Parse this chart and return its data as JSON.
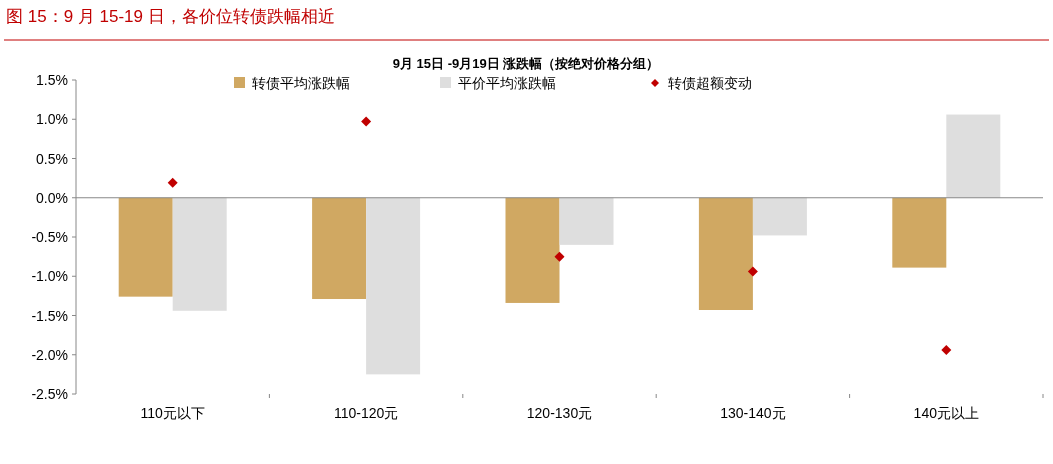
{
  "chart_data": {
    "type": "bar",
    "title": "图 15：9 月 15-19 日，各价位转债跌幅相近",
    "subtitle": "9月 15日 -9月19日 涨跌幅（按绝对价格分组）",
    "categories": [
      "110元以下",
      "110-120元",
      "120-130元",
      "130-140元",
      "140元以上"
    ],
    "series": [
      {
        "name": "转债平均涨跌幅",
        "color": "#d0a862",
        "values": [
          -1.26,
          -1.29,
          -1.34,
          -1.43,
          -0.89
        ]
      },
      {
        "name": "平价平均涨跌幅",
        "color": "#dedede",
        "values": [
          -1.44,
          -2.25,
          -0.6,
          -0.48,
          1.06
        ]
      },
      {
        "name": "转债超额变动",
        "color": "#c00000",
        "type": "scatter",
        "marker": "diamond",
        "x": [
          "110元以下",
          "110-120元",
          "120-130元",
          "130-140元",
          "140元以上"
        ],
        "values": [
          0.19,
          0.97,
          -0.75,
          -0.94,
          -1.94
        ]
      }
    ],
    "ylim": [
      -2.5,
      1.5
    ],
    "yticks": [
      {
        "value": 1.5,
        "label": "1.5%"
      },
      {
        "value": 1.0,
        "label": "1.0%"
      },
      {
        "value": 0.5,
        "label": "0.5%"
      },
      {
        "value": 0.0,
        "label": "0.0%"
      },
      {
        "value": -0.5,
        "label": "-0.5%"
      },
      {
        "value": -1.0,
        "label": "-1.0%"
      },
      {
        "value": -1.5,
        "label": "-1.5%"
      },
      {
        "value": -2.0,
        "label": "-2.0%"
      },
      {
        "value": -2.5,
        "label": "-2.5%"
      }
    ],
    "legend": "top"
  }
}
